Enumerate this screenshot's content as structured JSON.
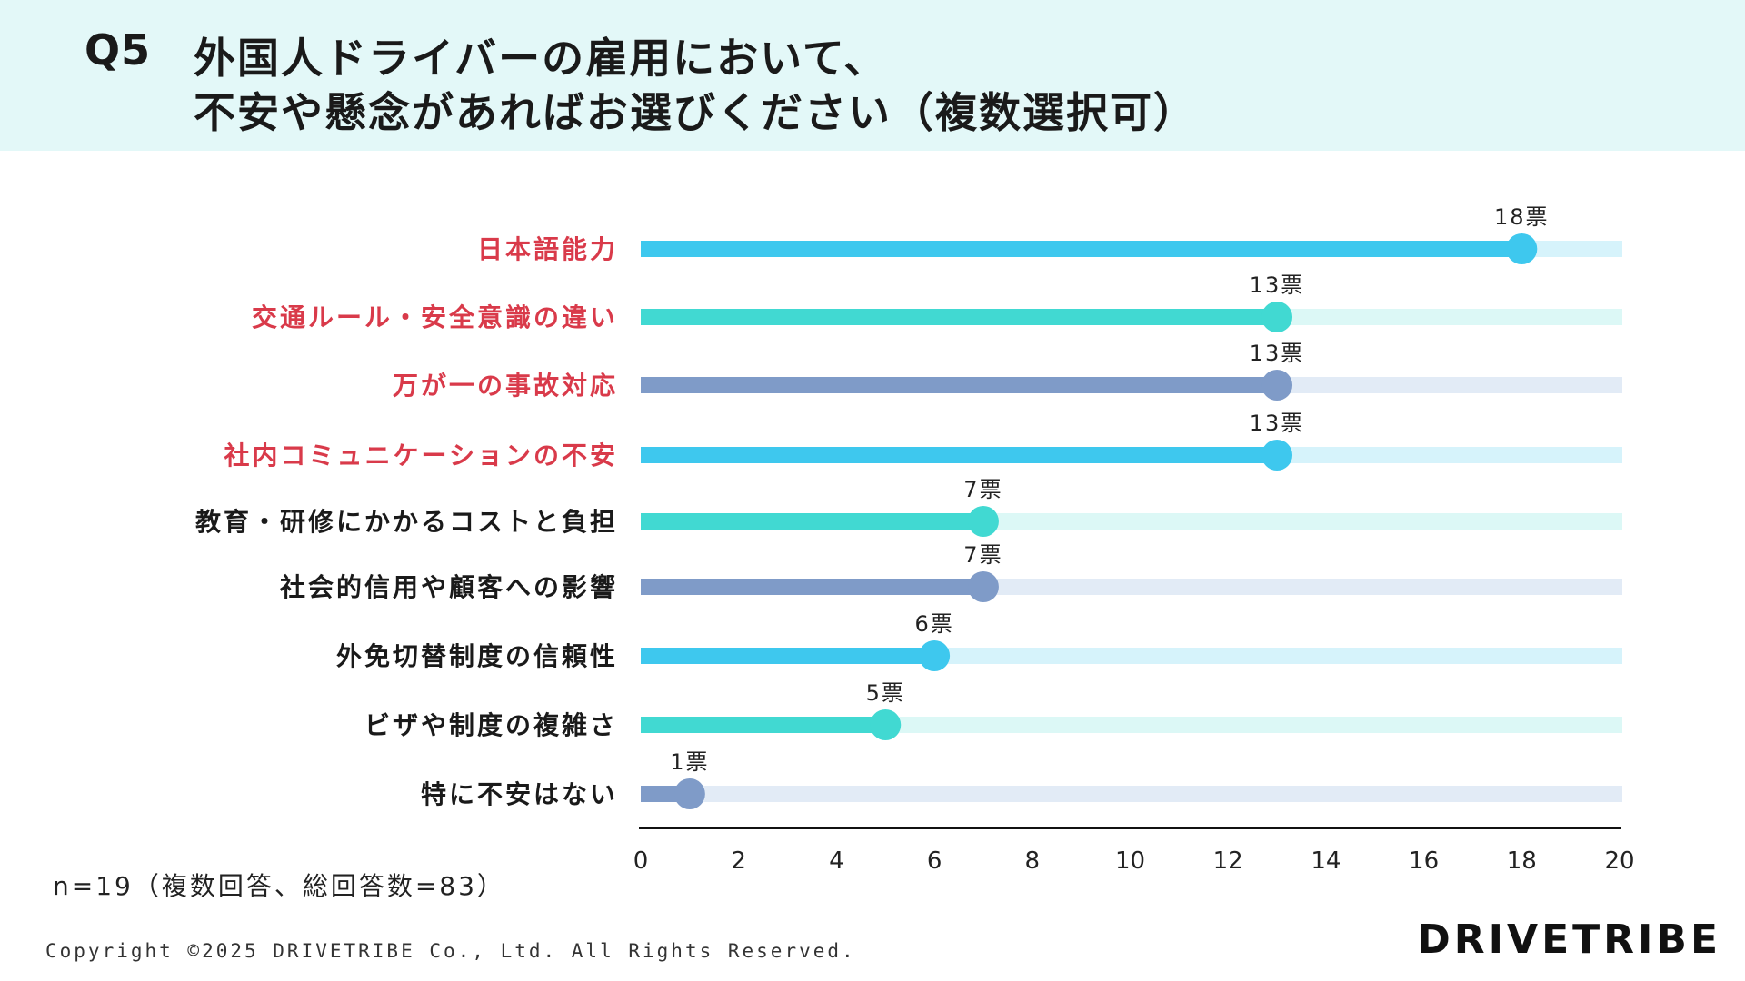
{
  "header": {
    "q_number": "Q5",
    "title_line1": "外国人ドライバーの雇用において、",
    "title_line2": "不安や懸念があればお選びください（複数選択可）"
  },
  "colors": {
    "header_bg": "#e3f8f8",
    "highlight_label": "#d93a4a",
    "series_palette": [
      "#3ec8ee",
      "#41d9d2",
      "#7f9bc8"
    ],
    "track_palette": [
      "#d6f3fb",
      "#dcf8f6",
      "#e2ebf6"
    ]
  },
  "chart_data": {
    "type": "bar",
    "style": "lollipop",
    "categories": [
      "日本語能力",
      "交通ルール・安全意識の違い",
      "万が一の事故対応",
      "社内コミュニケーションの不安",
      "教育・研修にかかるコストと負担",
      "社会的信用や顧客への影響",
      "外免切替制度の信頼性",
      "ビザや制度の複雑さ",
      "特に不安はない"
    ],
    "values": [
      18,
      13,
      13,
      13,
      7,
      7,
      6,
      5,
      1
    ],
    "value_labels": [
      "18票",
      "13票",
      "13票",
      "13票",
      "7票",
      "7票",
      "6票",
      "5票",
      "1票"
    ],
    "highlighted": [
      true,
      true,
      true,
      true,
      false,
      false,
      false,
      false,
      false
    ],
    "xlim": [
      0,
      20
    ],
    "xticks": [
      "0",
      "2",
      "4",
      "6",
      "8",
      "10",
      "12",
      "14",
      "16",
      "18",
      "20"
    ],
    "grid": false
  },
  "footer": {
    "note": "n=19（複数回答、総回答数=83）",
    "copyright": "Copyright ©2025 DRIVETRIBE Co., Ltd. All Rights Reserved.",
    "logo": "DRIVETRIBE"
  }
}
